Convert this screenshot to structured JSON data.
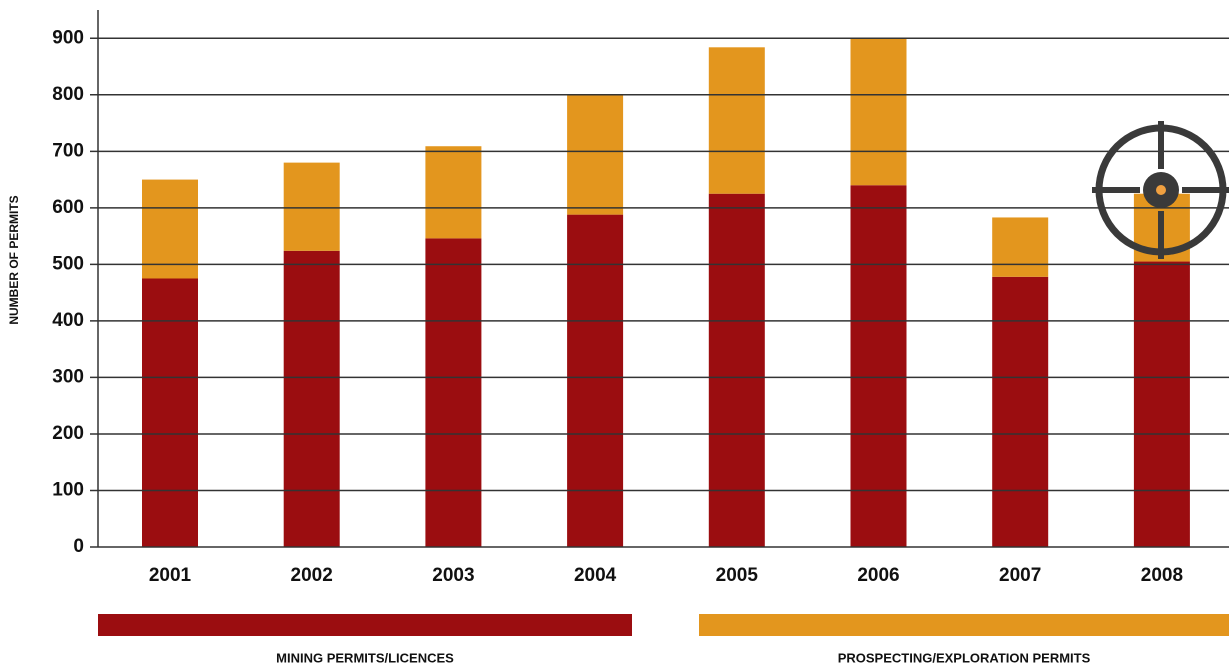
{
  "chart_data": {
    "type": "stacked_bar",
    "y_label": "NUMBER OF PERMITS",
    "categories": [
      "2001",
      "2002",
      "2003",
      "2004",
      "2005",
      "2006",
      "2007",
      "2008"
    ],
    "series": [
      {
        "name": "MINING PERMITS/LICENCES",
        "color": "#9b0d10",
        "values": [
          475,
          524,
          546,
          588,
          625,
          640,
          478,
          505
        ]
      },
      {
        "name": "PROSPECTING/EXPLORATION PERMITS",
        "color": "#e3961e",
        "values": [
          175,
          156,
          163,
          212,
          259,
          260,
          105,
          120
        ]
      }
    ],
    "ylim": [
      0,
      950
    ],
    "yticks": [
      0,
      100,
      200,
      300,
      400,
      500,
      600,
      700,
      800,
      900
    ],
    "grid": true
  }
}
